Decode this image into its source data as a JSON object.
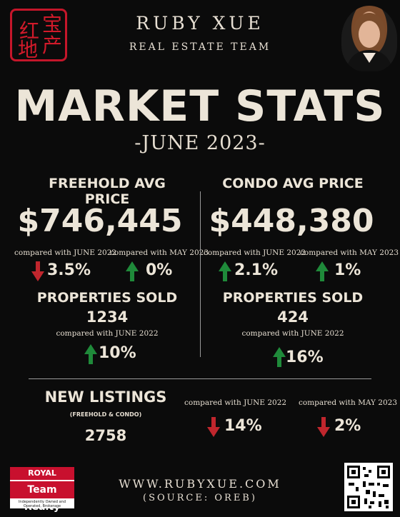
{
  "colors": {
    "background": "#0b0b0b",
    "text": "#ece5d8",
    "up": "#1f8a3a",
    "down": "#c0262d",
    "seal": "#c4162a"
  },
  "seal": {
    "chars": [
      "红",
      "宝",
      "地",
      "产"
    ]
  },
  "brand": {
    "name": "RUBY XUE",
    "subtitle": "REAL ESTATE TEAM"
  },
  "title": "MARKET STATS",
  "date": "-JUNE 2023-",
  "freehold": {
    "heading": "FREEHOLD AVG PRICE",
    "price": "$746,445",
    "cmp1_label": "compared with JUNE 2022",
    "cmp1_value": "3.5%",
    "cmp1_dir": "down",
    "cmp2_label": "compared with MAY 2023",
    "cmp2_value": "0%",
    "cmp2_dir": "up",
    "sold_heading": "PROPERTIES SOLD",
    "sold_value": "1234",
    "sold_cmp_label": "compared with JUNE 2022",
    "sold_cmp_value": "10%",
    "sold_cmp_dir": "up"
  },
  "condo": {
    "heading": "CONDO AVG PRICE",
    "price": "$448,380",
    "cmp1_label": "compared with JUNE 2022",
    "cmp1_value": "2.1%",
    "cmp1_dir": "up",
    "cmp2_label": "compared with MAY 2023",
    "cmp2_value": "1%",
    "cmp2_dir": "up",
    "sold_heading": "PROPERTIES SOLD",
    "sold_value": "424",
    "sold_cmp_label": "compared with JUNE 2022",
    "sold_cmp_value": "16%",
    "sold_cmp_dir": "up"
  },
  "new_listings": {
    "heading": "NEW LISTINGS",
    "note": "(FREEHOLD & CONDO)",
    "value": "2758",
    "cmp1_label": "compared with JUNE 2022",
    "cmp1_value": "14%",
    "cmp1_dir": "down",
    "cmp2_label": "compared with MAY 2023",
    "cmp2_value": "2%",
    "cmp2_dir": "down"
  },
  "footer": {
    "url": "WWW.RUBYXUE.COM",
    "source": "(SOURCE: OREB)",
    "logo_line1": "ROYAL LePAGE",
    "logo_line2": "Team Realty",
    "logo_line3": "Independently Owned and Operated, Brokerage"
  },
  "icons": {
    "up": "arrow-up-icon",
    "down": "arrow-down-icon",
    "qr": "qr-code-icon"
  }
}
